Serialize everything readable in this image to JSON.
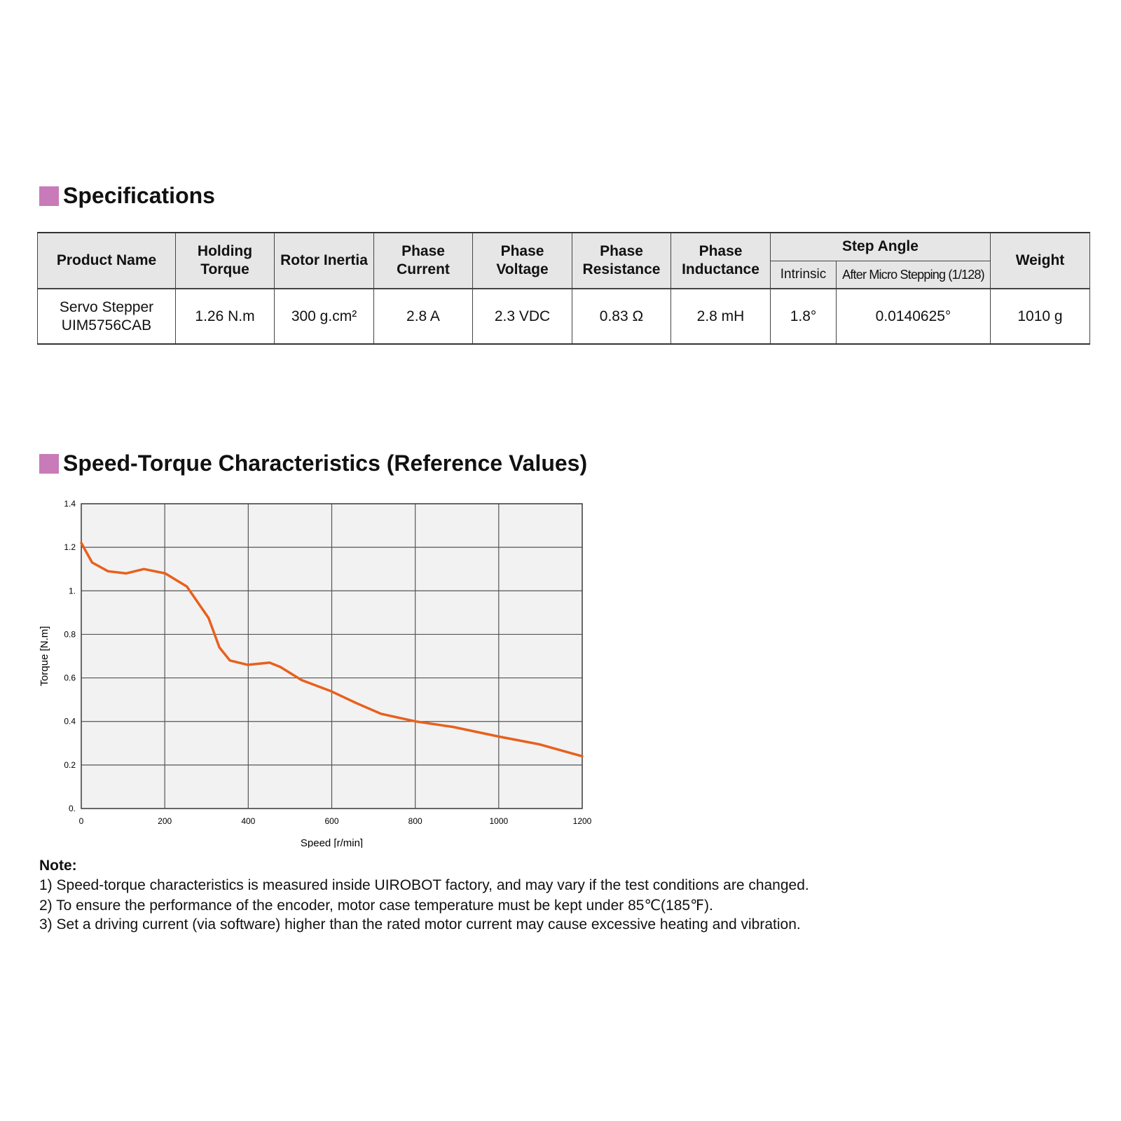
{
  "specifications": {
    "title": "Specifications",
    "table": {
      "headers": [
        "Product Name",
        "Holding Torque",
        "Rotor Inertia",
        "Phase Current",
        "Phase Voltage",
        "Phase Resistance",
        "Phase Inductance",
        "Step Angle",
        "Weight"
      ],
      "step_angle_sub": [
        "Intrinsic",
        "After Micro Stepping (1/128)"
      ],
      "row": [
        "Servo Stepper UIM5756CAB",
        "1.26 N.m",
        "300 g.cm²",
        "2.8 A",
        "2.3 VDC",
        "0.83 Ω",
        "2.8 mH",
        "1.8°",
        "0.0140625°",
        "1010 g"
      ]
    }
  },
  "chart_data": {
    "type": "line",
    "title": "Speed-Torque Characteristics (Reference Values)",
    "x_label": "Speed [r/min]",
    "y_label": "Torque [N.m]",
    "x": [
      0,
      26,
      64,
      107,
      150,
      201,
      253,
      305,
      331,
      356,
      399,
      451,
      477,
      528,
      597,
      658,
      718,
      801,
      890,
      1002,
      1097,
      1200
    ],
    "series": [
      {
        "color": "#e8601c",
        "values": [
          1.22,
          1.13,
          1.09,
          1.08,
          1.1,
          1.08,
          1.02,
          0.875,
          0.74,
          0.68,
          0.66,
          0.67,
          0.65,
          0.59,
          0.54,
          0.485,
          0.435,
          0.4,
          0.375,
          0.33,
          0.295,
          0.24
        ]
      }
    ],
    "xlim": [
      0,
      1200
    ],
    "ylim": [
      0,
      1.4
    ],
    "xticks": [
      0,
      200,
      400,
      600,
      800,
      1000,
      1200
    ],
    "yticks": [
      {
        "value": 0,
        "label": "0."
      },
      0.2,
      0.4,
      0.6,
      0.8,
      {
        "value": 1,
        "label": "1."
      },
      1.2,
      1.4
    ],
    "grid": true
  },
  "note": {
    "title": "Note:",
    "lines": [
      "1) Speed-torque characteristics is measured inside UIROBOT factory, and may vary if the test conditions are changed.",
      "2) To ensure the performance of the encoder, motor case temperature must be kept under 85℃(185℉).",
      "3) Set a driving current (via software) higher than the rated motor current may cause excessive heating and vibration."
    ]
  }
}
